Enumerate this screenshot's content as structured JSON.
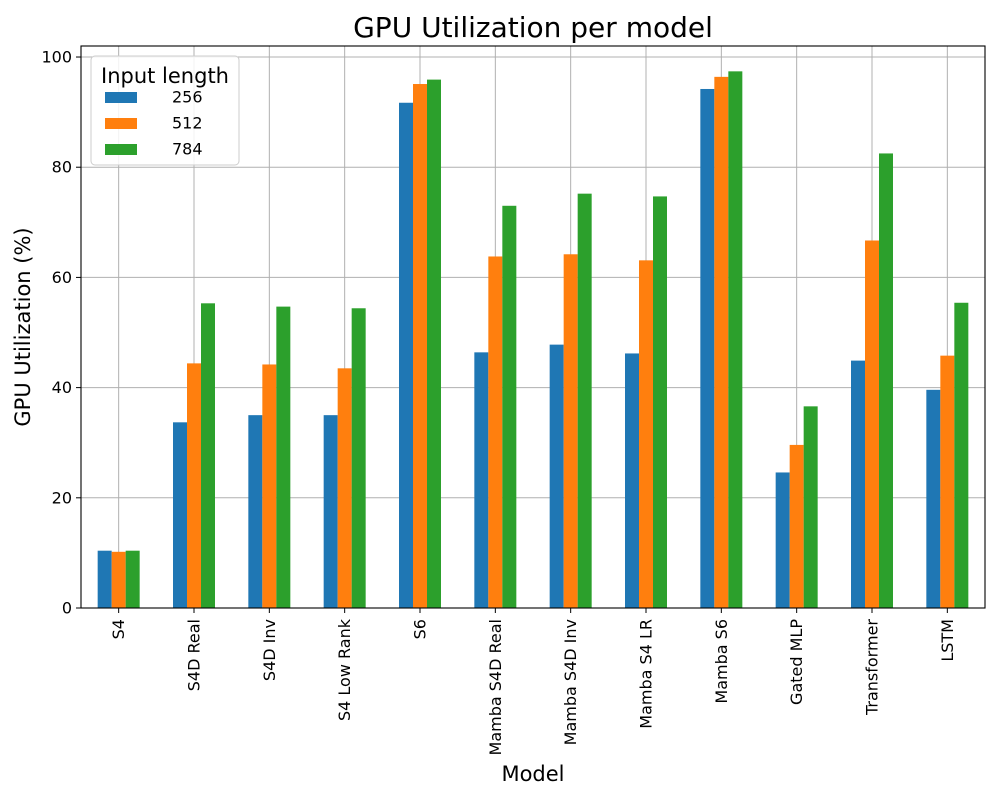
{
  "chart_data": {
    "type": "bar",
    "title": "GPU Utilization per model",
    "xlabel": "Model",
    "ylabel": "GPU Utilization (%)",
    "ylim": [
      0,
      102
    ],
    "yticks": [
      0,
      20,
      40,
      60,
      80,
      100
    ],
    "grid": true,
    "legend_title": "Input length",
    "legend_position": "top-left",
    "categories": [
      "S4",
      "S4D Real",
      "S4D Inv",
      "S4 Low Rank",
      "S6",
      "Mamba S4D Real",
      "Mamba S4D Inv",
      "Mamba S4 LR",
      "Mamba S6",
      "Gated MLP",
      "Transformer",
      "LSTM"
    ],
    "series": [
      {
        "name": "256",
        "color": "#1f77b4",
        "values": [
          10.4,
          33.7,
          35.0,
          35.0,
          91.7,
          46.4,
          47.8,
          46.2,
          94.2,
          24.6,
          44.9,
          39.6
        ]
      },
      {
        "name": "512",
        "color": "#ff7f0e",
        "values": [
          10.2,
          44.4,
          44.2,
          43.5,
          95.1,
          63.8,
          64.2,
          63.1,
          96.4,
          29.6,
          66.7,
          45.8
        ]
      },
      {
        "name": "784",
        "color": "#2ca02c",
        "values": [
          10.4,
          55.3,
          54.7,
          54.4,
          95.9,
          73.0,
          75.2,
          74.7,
          97.4,
          36.6,
          82.5,
          55.4
        ]
      }
    ]
  }
}
